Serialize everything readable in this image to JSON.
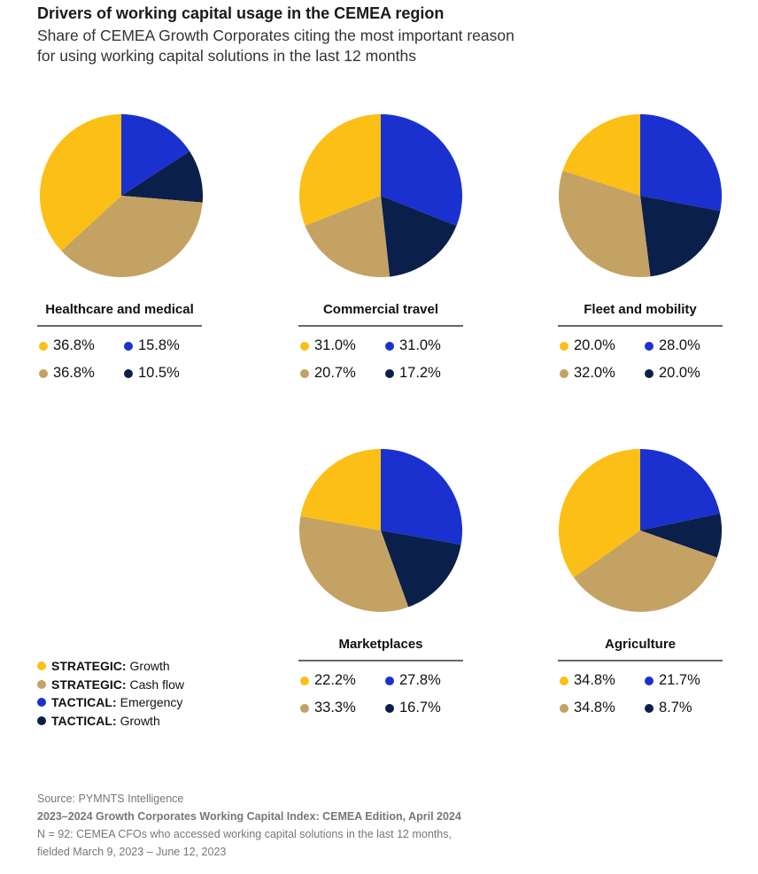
{
  "title": "Drivers of working capital usage in the CEMEA region",
  "subtitle_lines": [
    "Share of CEMEA Growth Corporates citing the most important reason",
    "for using working capital solutions in the last 12 months"
  ],
  "colors": {
    "strategic_growth": "#FBBF16",
    "strategic_cash_flow": "#C4A263",
    "tactical_emergency": "#1A31D0",
    "tactical_growth": "#0B1F4B"
  },
  "legend": [
    {
      "key": "strategic_growth",
      "bold": "STRATEGIC:",
      "label": "Growth"
    },
    {
      "key": "strategic_cash_flow",
      "bold": "STRATEGIC:",
      "label": "Cash flow"
    },
    {
      "key": "tactical_emergency",
      "bold": "TACTICAL:",
      "label": "Emergency"
    },
    {
      "key": "tactical_growth",
      "bold": "TACTICAL:",
      "label": "Growth"
    }
  ],
  "chart_data": [
    {
      "type": "pie",
      "title": "Healthcare and medical",
      "slices": {
        "tactical_emergency": 15.8,
        "tactical_growth": 10.5,
        "strategic_cash_flow": 36.8,
        "strategic_growth": 36.8
      },
      "labels": {
        "strategic_growth": "36.8%",
        "tactical_emergency": "15.8%",
        "strategic_cash_flow": "36.8%",
        "tactical_growth": "10.5%"
      }
    },
    {
      "type": "pie",
      "title": "Commercial travel",
      "slices": {
        "tactical_emergency": 31.0,
        "tactical_growth": 17.2,
        "strategic_cash_flow": 20.7,
        "strategic_growth": 31.0
      },
      "labels": {
        "strategic_growth": "31.0%",
        "tactical_emergency": "31.0%",
        "strategic_cash_flow": "20.7%",
        "tactical_growth": "17.2%"
      }
    },
    {
      "type": "pie",
      "title": "Fleet and mobility",
      "slices": {
        "tactical_emergency": 28.0,
        "tactical_growth": 20.0,
        "strategic_cash_flow": 32.0,
        "strategic_growth": 20.0
      },
      "labels": {
        "strategic_growth": "20.0%",
        "tactical_emergency": "28.0%",
        "strategic_cash_flow": "32.0%",
        "tactical_growth": "20.0%"
      }
    },
    {
      "type": "pie",
      "title": "Marketplaces",
      "slices": {
        "tactical_emergency": 27.8,
        "tactical_growth": 16.7,
        "strategic_cash_flow": 33.3,
        "strategic_growth": 22.2
      },
      "labels": {
        "strategic_growth": "22.2%",
        "tactical_emergency": "27.8%",
        "strategic_cash_flow": "33.3%",
        "tactical_growth": "16.7%"
      }
    },
    {
      "type": "pie",
      "title": "Agriculture",
      "slices": {
        "tactical_emergency": 21.7,
        "tactical_growth": 8.7,
        "strategic_cash_flow": 34.8,
        "strategic_growth": 34.8
      },
      "labels": {
        "strategic_growth": "34.8%",
        "tactical_emergency": "21.7%",
        "strategic_cash_flow": "34.8%",
        "tactical_growth": "8.7%"
      }
    }
  ],
  "footer": {
    "source": "Source: PYMNTS Intelligence",
    "report": "2023–2024 Growth Corporates Working Capital Index: CEMEA Edition, April 2024",
    "note1": "N = 92: CEMEA CFOs who accessed working capital solutions in the last 12 months,",
    "note2": "fielded March 9, 2023 – June 12, 2023"
  }
}
